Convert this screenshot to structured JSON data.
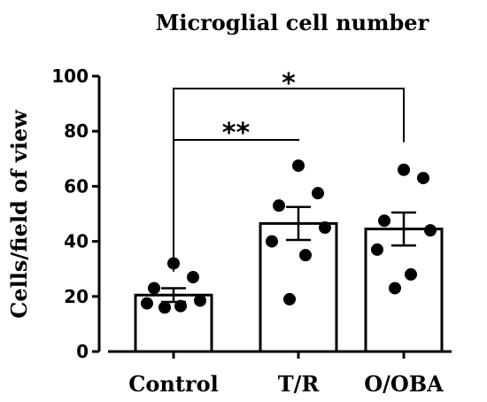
{
  "chart_data": {
    "type": "bar",
    "title": "Microglial cell number",
    "ylabel": "Cells/field of view",
    "xlabel": "",
    "ylim": [
      0,
      100
    ],
    "yticks": [
      0,
      20,
      40,
      60,
      80,
      100
    ],
    "categories": [
      "Control",
      "T/R",
      "O/OBA"
    ],
    "values": [
      20.5,
      46.5,
      44.5
    ],
    "errors": [
      2.5,
      6.0,
      6.0
    ],
    "points": [
      [
        32,
        27,
        23,
        18.5,
        17.5,
        16.5,
        16
      ],
      [
        67.5,
        57.5,
        53,
        45,
        40,
        35,
        19
      ],
      [
        66,
        63,
        47.5,
        44,
        37,
        28,
        23
      ]
    ],
    "significance": [
      {
        "from": "Control",
        "to": "T/R",
        "label": "**"
      },
      {
        "from": "Control",
        "to": "O/OBA",
        "label": "*"
      }
    ],
    "colors": {
      "bar_fill": "#ffffff",
      "stroke": "#000000",
      "point": "#000000"
    },
    "grid": false
  }
}
